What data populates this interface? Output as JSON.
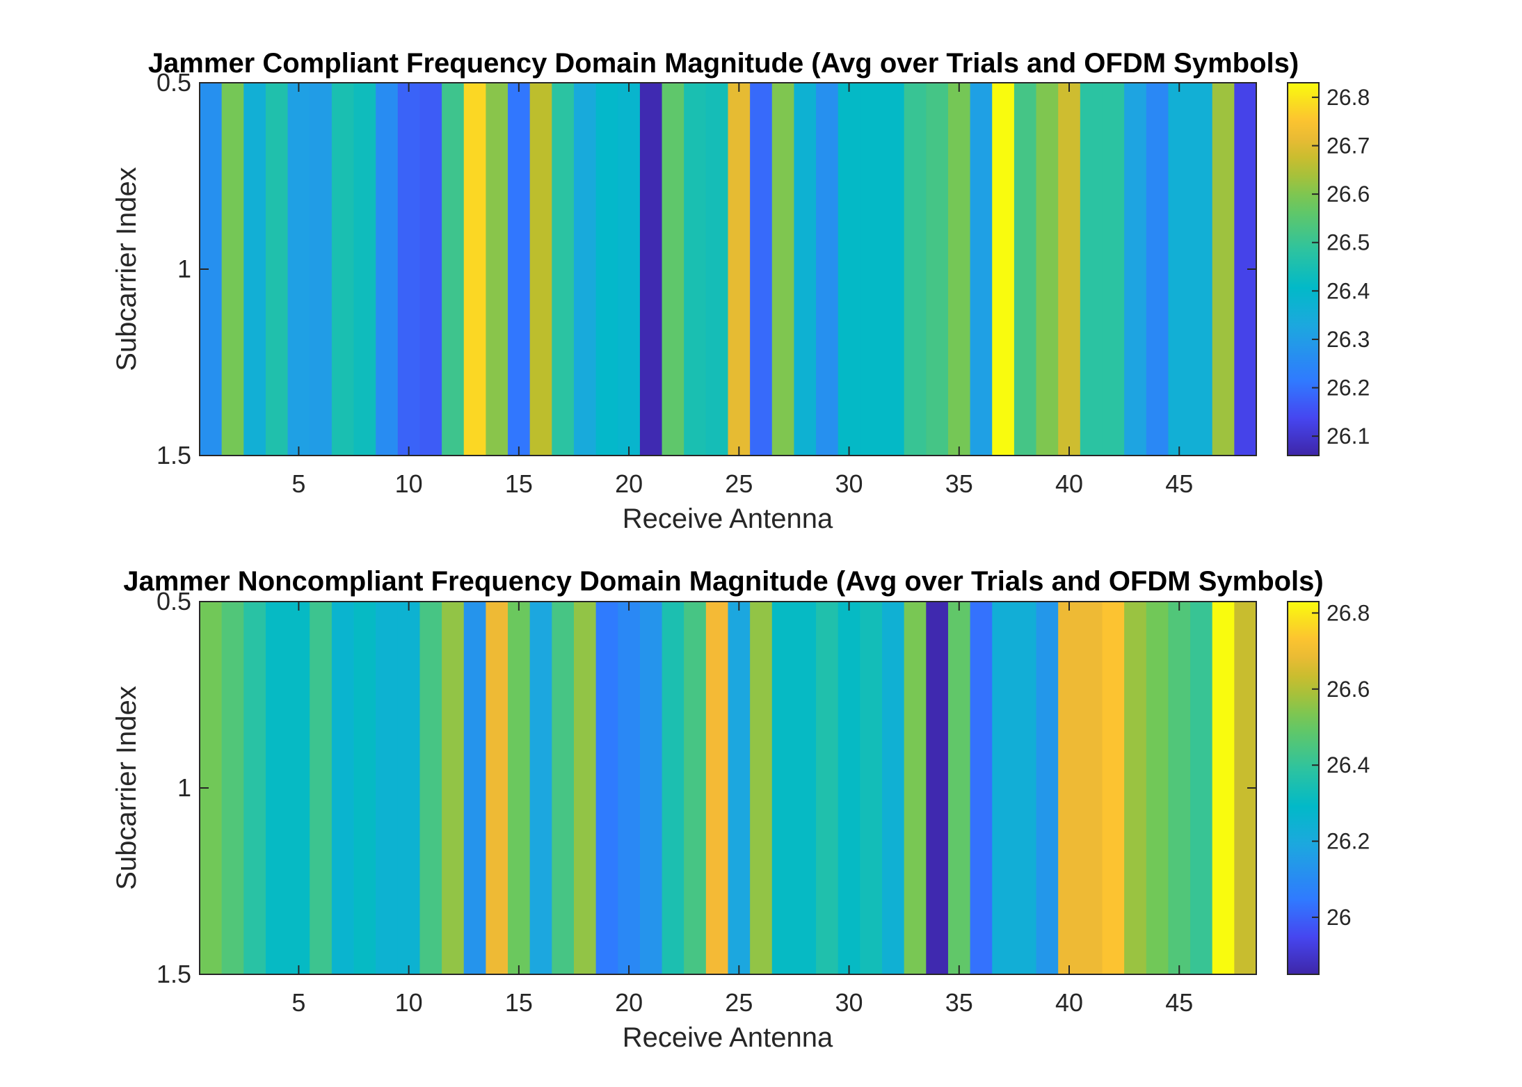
{
  "chart_data": [
    {
      "type": "heatmap",
      "title": "Jammer Compliant Frequency Domain Magnitude (Avg over Trials and OFDM Symbols)",
      "xlabel": "Receive Antenna",
      "ylabel": "Subcarrier Index",
      "xlim": [
        0.5,
        48.5
      ],
      "ylim": [
        0.5,
        1.5
      ],
      "xticks": [
        "5",
        "10",
        "15",
        "20",
        "25",
        "30",
        "35",
        "40",
        "45"
      ],
      "yticks": [
        "0.5",
        "1",
        "1.5"
      ],
      "colorbar": {
        "clim": [
          26.06,
          26.83
        ],
        "ticks": [
          "26.1",
          "26.2",
          "26.3",
          "26.4",
          "26.5",
          "26.6",
          "26.7",
          "26.8"
        ]
      },
      "x": [
        1,
        2,
        3,
        4,
        5,
        6,
        7,
        8,
        9,
        10,
        11,
        12,
        13,
        14,
        15,
        16,
        17,
        18,
        19,
        20,
        21,
        22,
        23,
        24,
        25,
        26,
        27,
        28,
        29,
        30,
        31,
        32,
        33,
        34,
        35,
        36,
        37,
        38,
        39,
        40,
        41,
        42,
        43,
        44,
        45,
        46,
        47,
        48
      ],
      "y": [
        1
      ],
      "values": [
        [
          26.27,
          26.59,
          26.36,
          26.46,
          26.31,
          26.3,
          26.45,
          26.43,
          26.26,
          26.18,
          26.17,
          26.51,
          26.78,
          26.61,
          26.21,
          26.66,
          26.48,
          26.34,
          26.4,
          26.39,
          26.07,
          26.56,
          26.45,
          26.44,
          26.71,
          26.19,
          26.6,
          26.37,
          26.27,
          26.41,
          26.41,
          26.41,
          26.5,
          26.52,
          26.59,
          26.31,
          26.83,
          26.52,
          26.6,
          26.68,
          26.48,
          26.48,
          26.32,
          26.25,
          26.36,
          26.36,
          26.63,
          26.13
        ]
      ]
    },
    {
      "type": "heatmap",
      "title": "Jammer Noncompliant Frequency Domain Magnitude (Avg over Trials and OFDM Symbols)",
      "xlabel": "Receive Antenna",
      "ylabel": "Subcarrier Index",
      "xlim": [
        0.5,
        48.5
      ],
      "ylim": [
        0.5,
        1.5
      ],
      "xticks": [
        "5",
        "10",
        "15",
        "20",
        "25",
        "30",
        "35",
        "40",
        "45"
      ],
      "yticks": [
        "0.5",
        "1",
        "1.5"
      ],
      "colorbar": {
        "clim": [
          25.85,
          26.83
        ],
        "ticks": [
          "26",
          "26.2",
          "26.4",
          "26.6",
          "26.8"
        ]
      },
      "x": [
        1,
        2,
        3,
        4,
        5,
        6,
        7,
        8,
        9,
        10,
        11,
        12,
        13,
        14,
        15,
        16,
        17,
        18,
        19,
        20,
        21,
        22,
        23,
        24,
        25,
        26,
        27,
        28,
        29,
        30,
        31,
        32,
        33,
        34,
        35,
        36,
        37,
        38,
        39,
        40,
        41,
        42,
        43,
        44,
        45,
        46,
        47,
        48
      ],
      "y": [
        1
      ],
      "values": [
        [
          26.52,
          26.46,
          26.38,
          26.3,
          26.3,
          26.42,
          26.26,
          26.3,
          26.25,
          26.25,
          26.44,
          26.56,
          26.13,
          26.69,
          26.51,
          26.19,
          26.44,
          26.56,
          26.05,
          26.09,
          26.13,
          26.35,
          26.44,
          26.7,
          26.19,
          26.56,
          26.3,
          26.3,
          26.36,
          26.3,
          26.33,
          26.24,
          26.53,
          25.86,
          26.49,
          26.03,
          26.23,
          26.23,
          26.14,
          26.69,
          26.69,
          26.73,
          26.57,
          26.52,
          26.46,
          26.41,
          26.83,
          26.63
        ]
      ]
    }
  ]
}
